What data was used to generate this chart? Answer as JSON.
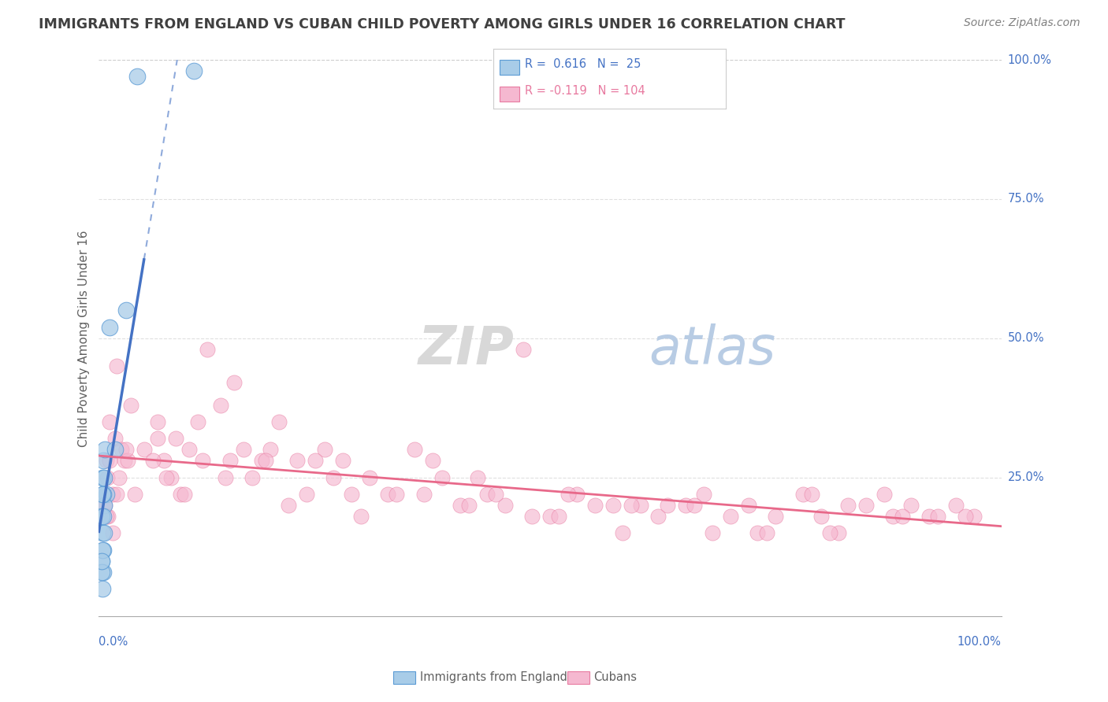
{
  "title": "IMMIGRANTS FROM ENGLAND VS CUBAN CHILD POVERTY AMONG GIRLS UNDER 16 CORRELATION CHART",
  "source": "Source: ZipAtlas.com",
  "ylabel": "Child Poverty Among Girls Under 16",
  "R_england": 0.616,
  "N_england": 25,
  "R_cubans": -0.119,
  "N_cubans": 104,
  "england_color": "#a8cce8",
  "cubans_color": "#f5b8d0",
  "england_edge_color": "#5b9bd5",
  "cubans_edge_color": "#e87aa0",
  "england_line_color": "#4472c4",
  "cubans_line_color": "#e8698a",
  "grid_color": "#e0e0e0",
  "watermark_zip_color": "#d8d8d8",
  "watermark_atlas_color": "#b8cce4",
  "legend_border_color": "#cccccc",
  "axis_label_color": "#4472c4",
  "title_color": "#404040",
  "ylabel_color": "#606060",
  "source_color": "#808080",
  "bottom_legend_color": "#606060",
  "eng_x": [
    0.5,
    0.8,
    0.4,
    0.3,
    0.6,
    0.5,
    0.4,
    0.3,
    0.5,
    0.4,
    0.7,
    0.3,
    0.5,
    0.6,
    0.4,
    0.3,
    0.5,
    0.4,
    0.6,
    0.3,
    1.8,
    3.0,
    4.2,
    10.5,
    1.2
  ],
  "eng_y": [
    8,
    22,
    15,
    18,
    20,
    12,
    25,
    10,
    28,
    5,
    30,
    18,
    22,
    15,
    12,
    8,
    18,
    22,
    25,
    10,
    30,
    55,
    97,
    98,
    52
  ],
  "cub_x": [
    1.5,
    0.8,
    2.0,
    1.2,
    3.5,
    2.8,
    0.5,
    1.8,
    0.9,
    2.5,
    4.0,
    3.2,
    1.0,
    2.2,
    0.7,
    1.5,
    3.0,
    2.0,
    1.2,
    0.8,
    5.0,
    8.0,
    6.5,
    7.2,
    9.0,
    11.0,
    12.0,
    15.0,
    13.5,
    10.0,
    7.5,
    6.0,
    8.5,
    9.5,
    11.5,
    14.0,
    16.0,
    18.0,
    20.0,
    17.0,
    22.0,
    25.0,
    28.0,
    30.0,
    27.0,
    23.0,
    19.0,
    26.0,
    21.0,
    24.0,
    32.0,
    35.0,
    38.0,
    40.0,
    37.0,
    33.0,
    42.0,
    45.0,
    48.0,
    43.0,
    50.0,
    53.0,
    55.0,
    58.0,
    60.0,
    47.0,
    52.0,
    57.0,
    62.0,
    65.0,
    68.0,
    70.0,
    72.0,
    75.0,
    63.0,
    67.0,
    73.0,
    78.0,
    80.0,
    85.0,
    82.0,
    88.0,
    90.0,
    92.0,
    95.0,
    87.0,
    93.0,
    79.0,
    83.0,
    97.0,
    6.5,
    14.5,
    29.0,
    44.0,
    59.0,
    74.0,
    89.0,
    18.5,
    36.0,
    51.0,
    66.0,
    81.0,
    96.0,
    41.0
  ],
  "cub_y": [
    22,
    28,
    45,
    35,
    38,
    28,
    20,
    32,
    25,
    30,
    22,
    28,
    18,
    25,
    20,
    15,
    30,
    22,
    28,
    18,
    30,
    25,
    32,
    28,
    22,
    35,
    48,
    42,
    38,
    30,
    25,
    28,
    32,
    22,
    28,
    25,
    30,
    28,
    35,
    25,
    28,
    30,
    22,
    25,
    28,
    22,
    30,
    25,
    20,
    28,
    22,
    30,
    25,
    20,
    28,
    22,
    25,
    20,
    18,
    22,
    18,
    22,
    20,
    15,
    20,
    48,
    22,
    20,
    18,
    20,
    15,
    18,
    20,
    18,
    20,
    22,
    15,
    22,
    18,
    20,
    15,
    18,
    20,
    18,
    20,
    22,
    18,
    22,
    20,
    18,
    35,
    28,
    18,
    22,
    20,
    15,
    18,
    28,
    22,
    18,
    20,
    15,
    18,
    20
  ]
}
